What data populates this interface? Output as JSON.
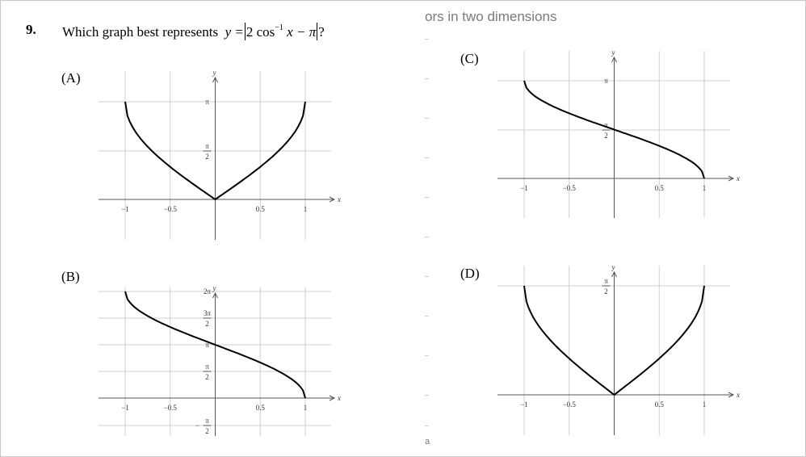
{
  "question": {
    "number": "9.",
    "text": "Which graph best represents",
    "formula": {
      "lhs": "y =",
      "coef": "2 cos",
      "exp": "−1",
      "arg": " x − π",
      "end": "?"
    }
  },
  "background": {
    "heading": "ors in two dimensions",
    "footer": "a"
  },
  "options": [
    {
      "label": "(A)"
    },
    {
      "label": "(B)"
    },
    {
      "label": "(C)"
    },
    {
      "label": "(D)"
    }
  ],
  "chart_data": [
    {
      "type": "line",
      "label": "(A)",
      "xlabel": "x",
      "ylabel": "y",
      "xticks": [
        "−1",
        "−0.5",
        "0.5",
        "1"
      ],
      "yticks": [
        "π",
        "π/2"
      ],
      "xlim": [
        -1,
        1
      ],
      "ylim": [
        0,
        3.1416
      ],
      "series": [
        {
          "x": [
            -1,
            -0.75,
            -0.5,
            -0.25,
            0,
            0.25,
            0.5,
            0.75,
            1
          ],
          "y": [
            3.1416,
            1.6961,
            1.0472,
            0.5054,
            0,
            0.5054,
            1.0472,
            1.6961,
            3.1416
          ]
        }
      ]
    },
    {
      "type": "line",
      "label": "(B)",
      "xlabel": "x",
      "ylabel": "y",
      "xticks": [
        "−1",
        "−0.5",
        "0.5",
        "1"
      ],
      "yticks": [
        "2π",
        "3π/2",
        "π",
        "π/2",
        "−π/2"
      ],
      "xlim": [
        -1,
        1
      ],
      "ylim": [
        -1.5708,
        6.2832
      ],
      "series": [
        {
          "x": [
            -1,
            -0.75,
            -0.5,
            -0.25,
            0,
            0.25,
            0.5,
            0.75,
            1
          ],
          "y": [
            6.2832,
            4.8377,
            4.1888,
            3.647,
            3.1416,
            2.6362,
            2.0944,
            1.4455,
            0
          ]
        }
      ]
    },
    {
      "type": "line",
      "label": "(C)",
      "xlabel": "x",
      "ylabel": "y",
      "xticks": [
        "−1",
        "−0.5",
        "0.5",
        "1"
      ],
      "yticks": [
        "π",
        "π/2"
      ],
      "xlim": [
        -1,
        1
      ],
      "ylim": [
        0,
        3.1416
      ],
      "series": [
        {
          "x": [
            -1,
            -0.75,
            -0.5,
            -0.25,
            0,
            0.25,
            0.5,
            0.75,
            1
          ],
          "y": [
            3.1416,
            2.4189,
            2.0944,
            1.8235,
            1.5708,
            1.3181,
            1.0472,
            0.7227,
            0
          ]
        }
      ]
    },
    {
      "type": "line",
      "label": "(D)",
      "xlabel": "x",
      "ylabel": "y",
      "xticks": [
        "−1",
        "−0.5",
        "0.5",
        "1"
      ],
      "yticks": [
        "π/2"
      ],
      "xlim": [
        -1,
        1
      ],
      "ylim": [
        0,
        1.5708
      ],
      "series": [
        {
          "x": [
            -1,
            -0.75,
            -0.5,
            -0.25,
            0,
            0.25,
            0.5,
            0.75,
            1
          ],
          "y": [
            1.5708,
            0.848,
            0.5236,
            0.2527,
            0,
            0.2527,
            0.5236,
            0.848,
            1.5708
          ]
        }
      ]
    }
  ]
}
